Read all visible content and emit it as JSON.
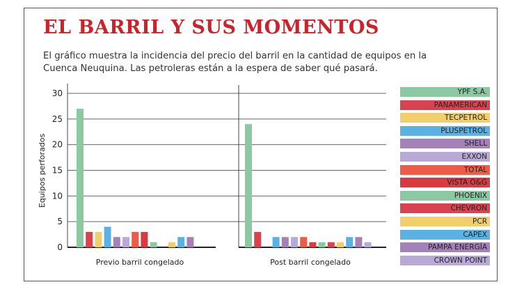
{
  "title": "EL BARRIL Y SUS MOMENTOS",
  "subtitle": "El gráfico muestra la incidencia del precio del barril en la cantidad de equipos en la Cuenca Neuquina. Las petroleras están a la espera de saber qué pasará.",
  "colors": {
    "title": "#c8242b"
  },
  "chart_data": {
    "type": "bar",
    "ylabel": "Equipos perforados",
    "xlabel": "",
    "ylim": [
      0,
      30
    ],
    "yticks": [
      0,
      5,
      10,
      15,
      20,
      25,
      30
    ],
    "grid": true,
    "legend": "right",
    "categories": [
      "Previo barril congelado",
      "Post barril congelado"
    ],
    "series": [
      {
        "name": "YPF S.A.",
        "color": "#8cc9a2",
        "values": [
          27,
          24
        ]
      },
      {
        "name": "PANAMERICAN",
        "color": "#d9434f",
        "values": [
          3,
          3
        ]
      },
      {
        "name": "TECPETROL",
        "color": "#f3cf6c",
        "values": [
          3,
          0
        ]
      },
      {
        "name": "PLUSPETROL",
        "color": "#5bb2e2",
        "values": [
          4,
          2
        ]
      },
      {
        "name": "SHELL",
        "color": "#a581b9",
        "values": [
          2,
          2
        ]
      },
      {
        "name": "EXXON",
        "color": "#b8a9d6",
        "values": [
          2,
          2
        ]
      },
      {
        "name": "TOTAL",
        "color": "#ef5b46",
        "values": [
          3,
          2
        ]
      },
      {
        "name": "VISTA O&G",
        "color": "#d93a40",
        "values": [
          3,
          1
        ]
      },
      {
        "name": "PHOENIX",
        "color": "#8cc9a2",
        "values": [
          1,
          1
        ]
      },
      {
        "name": "CHEVRON",
        "color": "#d9434f",
        "values": [
          0,
          1
        ]
      },
      {
        "name": "PCR",
        "color": "#f3cf6c",
        "values": [
          1,
          1
        ]
      },
      {
        "name": "CAPEX",
        "color": "#5bb2e2",
        "values": [
          2,
          2
        ]
      },
      {
        "name": "PAMPA ENERGÍA",
        "color": "#a581b9",
        "values": [
          2,
          2
        ]
      },
      {
        "name": "CROWN POINT",
        "color": "#b8a9d6",
        "values": [
          0,
          1
        ]
      }
    ]
  }
}
